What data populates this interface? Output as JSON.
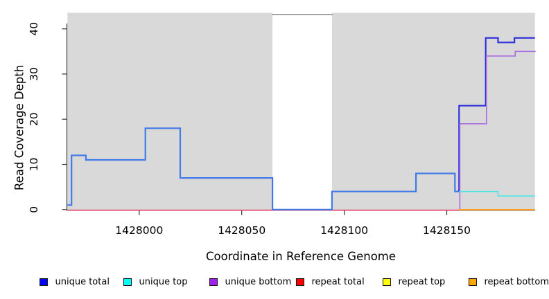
{
  "chart_data": {
    "type": "line",
    "subtype": "step",
    "title": "",
    "xlabel": "Coordinate in Reference Genome",
    "ylabel": "Read Coverage Depth",
    "xlim": [
      1427965,
      1428193
    ],
    "ylim": [
      0,
      40
    ],
    "grid": false,
    "x_ticks": [
      1428000,
      1428050,
      1428100,
      1428150
    ],
    "x_tick_labels": [
      "1428000",
      "1428050",
      "1428100",
      "1428150"
    ],
    "y_ticks": [
      0,
      10,
      20,
      30,
      40
    ],
    "y_tick_labels": [
      "0",
      "10",
      "20",
      "30",
      "40"
    ],
    "shaded_regions": [
      {
        "from": 1427965,
        "to": 1428065,
        "color": "#D9D9D9"
      },
      {
        "from": 1428094,
        "to": 1428193,
        "color": "#D9D9D9"
      }
    ],
    "gap_region": {
      "from": 1428065,
      "to": 1428094,
      "color": "#FFFFFF"
    },
    "series": [
      {
        "name": "unique total",
        "legend_color": "#0000FF",
        "line_color": "#4079E8",
        "line_color_after_split": "#3030DC",
        "split_x": 1428156,
        "points": [
          [
            1427965,
            1
          ],
          [
            1427967,
            12
          ],
          [
            1427974,
            11
          ],
          [
            1428003,
            18
          ],
          [
            1428020,
            7
          ],
          [
            1428065,
            0
          ],
          [
            1428094,
            4
          ],
          [
            1428135,
            8
          ],
          [
            1428154,
            4
          ],
          [
            1428156,
            23
          ],
          [
            1428169,
            38
          ],
          [
            1428175,
            37
          ],
          [
            1428183,
            38
          ]
        ],
        "end_x": 1428193
      },
      {
        "name": "unique top",
        "legend_color": "#00FFFF",
        "line_color": "#48E6E6",
        "points": [
          [
            1428156,
            4
          ],
          [
            1428175,
            3
          ]
        ],
        "end_x": 1428193
      },
      {
        "name": "unique bottom",
        "legend_color": "#A020F0",
        "line_color": "#A96CDF",
        "points": [
          [
            1428156,
            0
          ],
          [
            1428156,
            19
          ],
          [
            1428169,
            34
          ],
          [
            1428183,
            35
          ]
        ],
        "end_x": 1428193
      },
      {
        "name": "repeat total",
        "legend_color": "#FF0000",
        "line_color": "#E0406A",
        "points": [
          [
            1427965,
            0
          ]
        ],
        "end_x": 1428156
      },
      {
        "name": "repeat top",
        "legend_color": "#FFFF00",
        "line_color": "#FFFF00",
        "points": []
      },
      {
        "name": "repeat bottom",
        "legend_color": "#FFA500",
        "line_color": "#FF9D1E",
        "points": [
          [
            1428156,
            0
          ]
        ],
        "end_x": 1428193
      }
    ],
    "legend": {
      "position": "bottom",
      "entries": [
        {
          "label": "unique total",
          "color": "#0000FF"
        },
        {
          "label": "unique top",
          "color": "#00FFFF"
        },
        {
          "label": "unique bottom",
          "color": "#A020F0"
        },
        {
          "label": "repeat total",
          "color": "#FF0000"
        },
        {
          "label": "repeat top",
          "color": "#FFFF00"
        },
        {
          "label": "repeat bottom",
          "color": "#FFA500"
        }
      ]
    }
  }
}
